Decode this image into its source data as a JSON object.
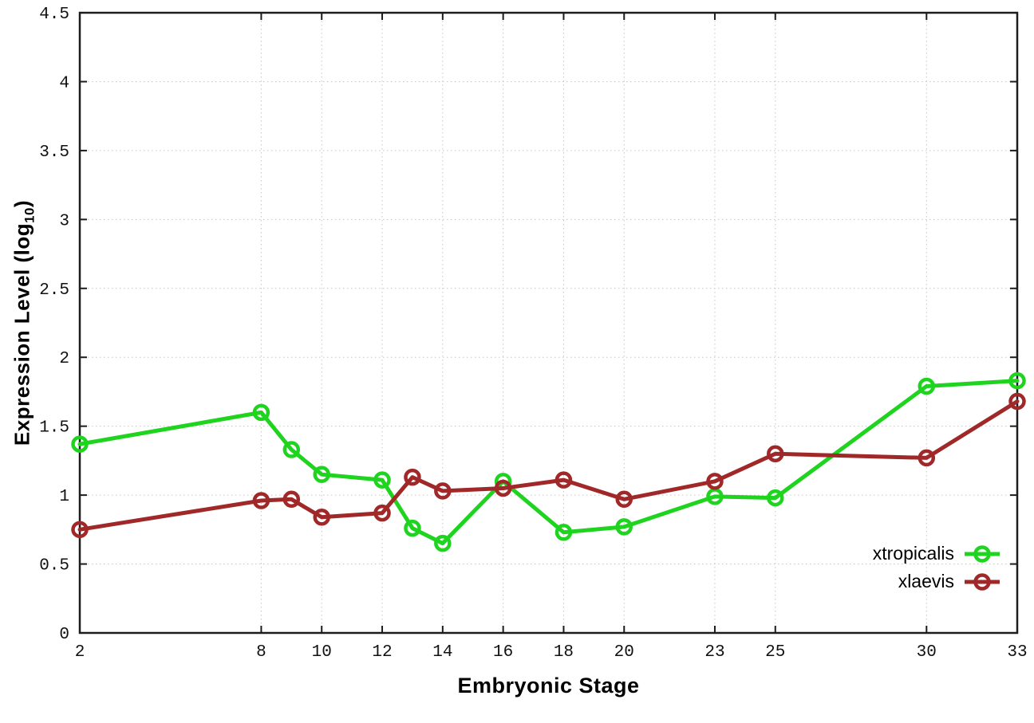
{
  "labels": {
    "xlabel": "Embryonic Stage",
    "ylabel_main": "Expression Level (log",
    "ylabel_sub": "10",
    "ylabel_close": ")"
  },
  "colors": {
    "xtropicalis": "#1fd41f",
    "xlaevis": "#a02828",
    "grid": "#c6c6c6",
    "border": "#1c1c1c",
    "text": "#111111"
  },
  "chart_data": {
    "type": "line",
    "title": "",
    "xlabel": "Embryonic Stage",
    "ylabel": "Expression Level (log10)",
    "xlim": [
      2,
      33
    ],
    "ylim": [
      0,
      4.5
    ],
    "grid": true,
    "legend_position": "inside-bottom-right",
    "marker": "open-circle",
    "xticks": [
      2,
      8,
      10,
      12,
      14,
      16,
      18,
      20,
      23,
      25,
      30,
      33
    ],
    "yticks": [
      0,
      0.5,
      1,
      1.5,
      2,
      2.5,
      3,
      3.5,
      4,
      4.5
    ],
    "ytick_labels": [
      "0",
      "0.5",
      "1",
      "1.5",
      "2",
      "2.5",
      "3",
      "3.5",
      "4",
      "4.5"
    ],
    "x": [
      2,
      8,
      9,
      10,
      12,
      13,
      14,
      16,
      18,
      20,
      23,
      25,
      30,
      33
    ],
    "series": [
      {
        "name": "xtropicalis",
        "color": "#1fd41f",
        "values": [
          1.37,
          1.6,
          1.33,
          1.15,
          1.11,
          0.76,
          0.65,
          1.1,
          0.73,
          0.77,
          0.99,
          0.98,
          1.79,
          1.83
        ]
      },
      {
        "name": "xlaevis",
        "color": "#a02828",
        "values": [
          0.75,
          0.96,
          0.97,
          0.84,
          0.87,
          1.13,
          1.03,
          1.05,
          1.11,
          0.97,
          1.1,
          1.3,
          1.27,
          1.68
        ]
      }
    ]
  }
}
